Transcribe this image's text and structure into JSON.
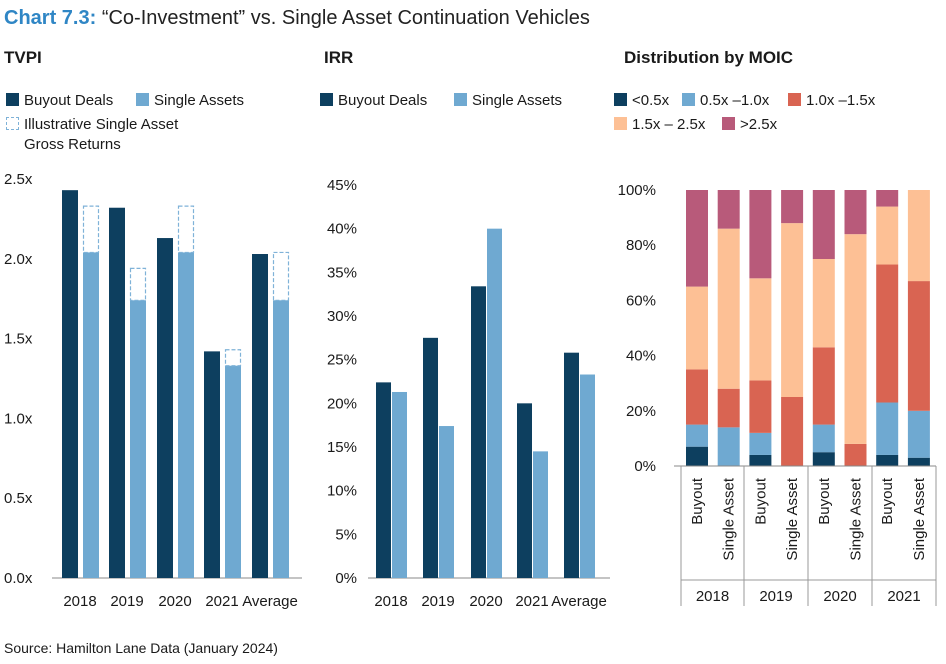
{
  "header": {
    "chart_number": "Chart 7.3:",
    "title": "“Co-Investment” vs. Single Asset Continuation Vehicles"
  },
  "footer": {
    "source": "Source: Hamilton Lane Data (January 2024)"
  },
  "colors": {
    "buyout": "#0d3f5f",
    "single": "#6fa9d1",
    "illustrative_border": "#7fb2d8",
    "moic_lt05": "#0d3f5f",
    "moic_05_10": "#6fa9d1",
    "moic_10_15": "#d96452",
    "moic_15_25": "#fdc095",
    "moic_gt25": "#b85a7a"
  },
  "chart_data": [
    {
      "type": "bar",
      "subtitle": "TVPI",
      "categories": [
        "2018",
        "2019",
        "2020",
        "2021",
        "Average"
      ],
      "series": [
        {
          "name": "Buyout Deals",
          "values": [
            2.43,
            2.32,
            2.13,
            1.42,
            2.03
          ]
        },
        {
          "name": "Single Assets",
          "values": [
            2.04,
            1.74,
            2.04,
            1.33,
            1.74
          ]
        },
        {
          "name": "Illustrative Single Asset Gross Returns",
          "values": [
            2.33,
            1.94,
            2.33,
            1.43,
            2.04
          ]
        }
      ],
      "legend_lines": [
        "Buyout Deals",
        "Single Assets",
        "Illustrative Single Asset",
        "Gross Returns"
      ],
      "ylim": [
        0,
        2.5
      ],
      "yticks": [
        "0.0x",
        "0.5x",
        "1.0x",
        "1.5x",
        "2.0x",
        "2.5x"
      ],
      "grid": false,
      "legend": "top"
    },
    {
      "type": "bar",
      "subtitle": "IRR",
      "categories": [
        "2018",
        "2019",
        "2020",
        "2021",
        "Average"
      ],
      "series": [
        {
          "name": "Buyout Deals",
          "values": [
            22.4,
            27.5,
            33.4,
            20.0,
            25.8
          ]
        },
        {
          "name": "Single Assets",
          "values": [
            21.3,
            17.4,
            40.0,
            14.5,
            23.3
          ]
        }
      ],
      "ylim": [
        0,
        45
      ],
      "yticks": [
        "0%",
        "5%",
        "10%",
        "15%",
        "20%",
        "25%",
        "30%",
        "35%",
        "40%",
        "45%"
      ],
      "grid": false,
      "legend": "top"
    },
    {
      "type": "bar",
      "stacked": true,
      "subtitle": "Distribution by MOIC",
      "categories": [
        "Buyout",
        "Single Asset",
        "Buyout",
        "Single Asset",
        "Buyout",
        "Single Asset",
        "Buyout",
        "Single Asset"
      ],
      "groups": [
        "2018",
        "2019",
        "2020",
        "2021"
      ],
      "series": [
        {
          "name": "<0.5x",
          "values": [
            7,
            0,
            4,
            0,
            5,
            0,
            4,
            3
          ]
        },
        {
          "name": "0.5x –1.0x",
          "values": [
            8,
            14,
            8,
            0,
            10,
            0,
            19,
            17
          ]
        },
        {
          "name": "1.0x –1.5x",
          "values": [
            20,
            14,
            19,
            25,
            28,
            8,
            50,
            47
          ]
        },
        {
          "name": "1.5x – 2.5x",
          "values": [
            30,
            58,
            37,
            63,
            32,
            76,
            21,
            33
          ]
        },
        {
          "name": ">2.5x",
          "values": [
            35,
            14,
            32,
            12,
            25,
            16,
            6,
            0
          ]
        }
      ],
      "ylim": [
        0,
        100
      ],
      "yticks": [
        "0%",
        "20%",
        "40%",
        "60%",
        "80%",
        "100%"
      ],
      "grid": false,
      "legend": "top"
    }
  ]
}
